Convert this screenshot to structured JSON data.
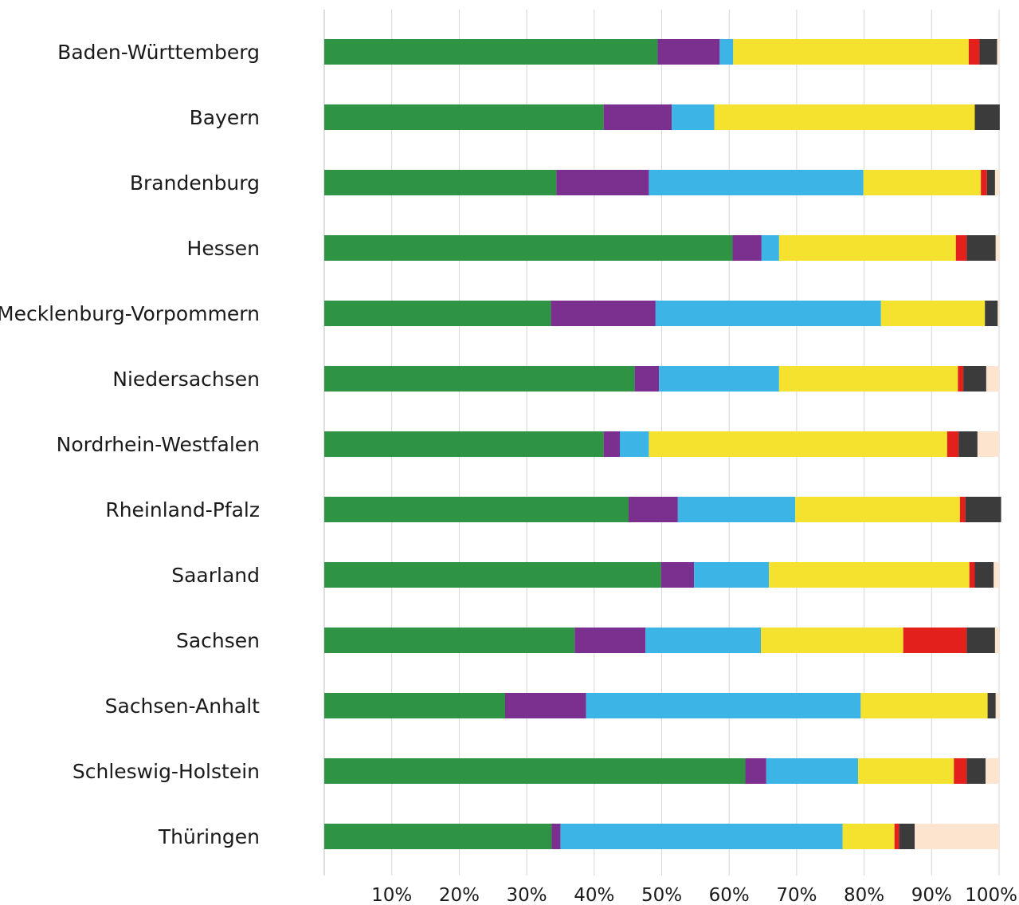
{
  "chart_data": {
    "type": "bar",
    "orientation": "horizontal",
    "stacked": true,
    "title": "",
    "xlabel": "",
    "ylabel": "",
    "xlim": [
      0,
      100
    ],
    "grid": true,
    "legend": "none",
    "x_ticks": [
      "10%",
      "20%",
      "30%",
      "40%",
      "50%",
      "60%",
      "70%",
      "80%",
      "90%",
      "100%"
    ],
    "categories": [
      "Baden-Württemberg",
      "Bayern",
      "Brandenburg",
      "Hessen",
      "Mecklenburg-Vorpommern",
      "Niedersachsen",
      "Nordrhein-Westfalen",
      "Rheinland-Pfalz",
      "Saarland",
      "Sachsen",
      "Sachsen-Anhalt",
      "Schleswig-Holstein",
      "Thüringen"
    ],
    "series": [
      {
        "color": "#2e9443",
        "values": [
          49.4,
          41.4,
          34.4,
          60.5,
          33.6,
          46.0,
          41.4,
          45.1,
          49.9,
          37.1,
          26.8,
          62.4,
          33.7
        ]
      },
      {
        "color": "#7b2f8e",
        "values": [
          9.2,
          10.1,
          13.7,
          4.3,
          15.5,
          3.6,
          2.4,
          7.3,
          4.9,
          10.5,
          12.0,
          3.1,
          1.3
        ]
      },
      {
        "color": "#3cb4e5",
        "values": [
          2.0,
          6.3,
          31.8,
          2.6,
          33.4,
          17.8,
          4.3,
          17.4,
          11.1,
          17.1,
          40.7,
          13.6,
          41.8
        ]
      },
      {
        "color": "#f5e22f",
        "values": [
          34.9,
          38.6,
          17.4,
          26.2,
          15.4,
          26.5,
          44.2,
          24.4,
          29.7,
          21.1,
          18.8,
          14.2,
          7.7
        ]
      },
      {
        "color": "#e3201b",
        "values": [
          1.6,
          0.0,
          0.9,
          1.6,
          0.0,
          0.8,
          1.7,
          0.8,
          0.8,
          9.4,
          0.0,
          1.9,
          0.7
        ]
      },
      {
        "color": "#3b3b3b",
        "values": [
          2.6,
          3.7,
          1.2,
          4.3,
          1.9,
          3.4,
          2.8,
          5.3,
          2.8,
          4.2,
          1.2,
          2.8,
          2.3
        ]
      },
      {
        "color": "#fde4cf",
        "values": [
          0.3,
          0.0,
          0.6,
          0.5,
          0.2,
          1.9,
          3.2,
          0.0,
          0.8,
          0.6,
          0.5,
          2.0,
          12.5
        ]
      }
    ]
  }
}
